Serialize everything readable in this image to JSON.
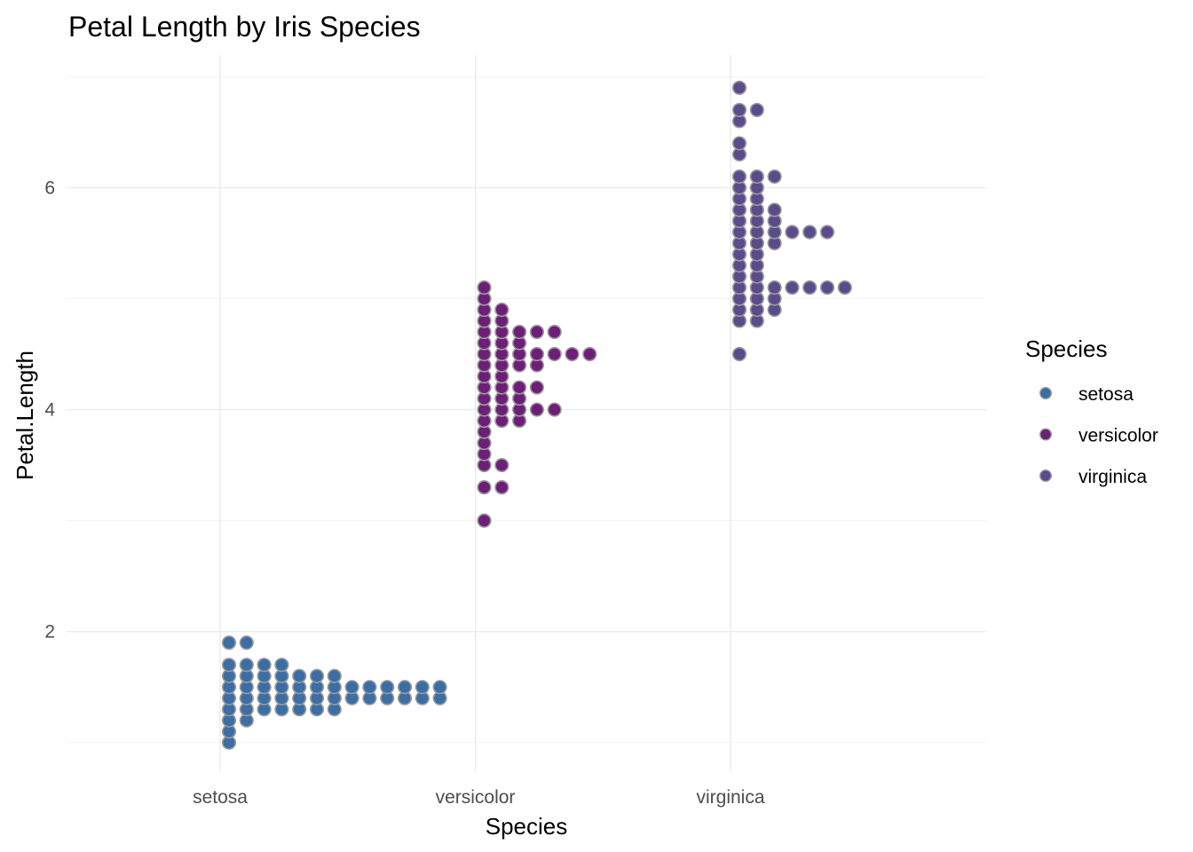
{
  "chart_data": {
    "type": "scatter",
    "subtype": "dotplot",
    "title": "Petal Length by Iris Species",
    "xlabel": "Species",
    "ylabel": "Petal.Length",
    "categories": [
      "setosa",
      "versicolor",
      "virginica"
    ],
    "y_ticks": [
      2,
      4,
      6
    ],
    "ylim": [
      0.8,
      7.1
    ],
    "grid": true,
    "legend": {
      "title": "Species",
      "position": "right",
      "entries": [
        {
          "label": "setosa",
          "color": "#3a6ea5"
        },
        {
          "label": "versicolor",
          "color": "#6e1e78"
        },
        {
          "label": "virginica",
          "color": "#5a4b8c"
        }
      ]
    },
    "dot_outline_color": "#9a9a9a",
    "series": [
      {
        "name": "setosa",
        "category": "setosa",
        "color": "#3a6ea5",
        "values": [
          {
            "y": 1.0,
            "count": 1
          },
          {
            "y": 1.1,
            "count": 1
          },
          {
            "y": 1.2,
            "count": 2
          },
          {
            "y": 1.3,
            "count": 7
          },
          {
            "y": 1.4,
            "count": 13
          },
          {
            "y": 1.5,
            "count": 13
          },
          {
            "y": 1.6,
            "count": 7
          },
          {
            "y": 1.7,
            "count": 4
          },
          {
            "y": 1.9,
            "count": 2
          }
        ]
      },
      {
        "name": "versicolor",
        "category": "versicolor",
        "color": "#6e1e78",
        "values": [
          {
            "y": 3.0,
            "count": 1
          },
          {
            "y": 3.3,
            "count": 2
          },
          {
            "y": 3.5,
            "count": 2
          },
          {
            "y": 3.6,
            "count": 1
          },
          {
            "y": 3.7,
            "count": 1
          },
          {
            "y": 3.8,
            "count": 1
          },
          {
            "y": 3.9,
            "count": 3
          },
          {
            "y": 4.0,
            "count": 5
          },
          {
            "y": 4.1,
            "count": 3
          },
          {
            "y": 4.2,
            "count": 4
          },
          {
            "y": 4.3,
            "count": 2
          },
          {
            "y": 4.4,
            "count": 4
          },
          {
            "y": 4.5,
            "count": 7
          },
          {
            "y": 4.6,
            "count": 3
          },
          {
            "y": 4.7,
            "count": 5
          },
          {
            "y": 4.8,
            "count": 2
          },
          {
            "y": 4.9,
            "count": 2
          },
          {
            "y": 5.0,
            "count": 1
          },
          {
            "y": 5.1,
            "count": 1
          }
        ]
      },
      {
        "name": "virginica",
        "category": "virginica",
        "color": "#5a4b8c",
        "values": [
          {
            "y": 4.5,
            "count": 1
          },
          {
            "y": 4.8,
            "count": 2
          },
          {
            "y": 4.9,
            "count": 3
          },
          {
            "y": 5.0,
            "count": 3
          },
          {
            "y": 5.1,
            "count": 7
          },
          {
            "y": 5.2,
            "count": 2
          },
          {
            "y": 5.3,
            "count": 2
          },
          {
            "y": 5.4,
            "count": 2
          },
          {
            "y": 5.5,
            "count": 3
          },
          {
            "y": 5.6,
            "count": 6
          },
          {
            "y": 5.7,
            "count": 3
          },
          {
            "y": 5.8,
            "count": 3
          },
          {
            "y": 5.9,
            "count": 2
          },
          {
            "y": 6.0,
            "count": 2
          },
          {
            "y": 6.1,
            "count": 3
          },
          {
            "y": 6.3,
            "count": 1
          },
          {
            "y": 6.4,
            "count": 1
          },
          {
            "y": 6.6,
            "count": 1
          },
          {
            "y": 6.7,
            "count": 2
          },
          {
            "y": 6.9,
            "count": 1
          }
        ]
      }
    ]
  }
}
